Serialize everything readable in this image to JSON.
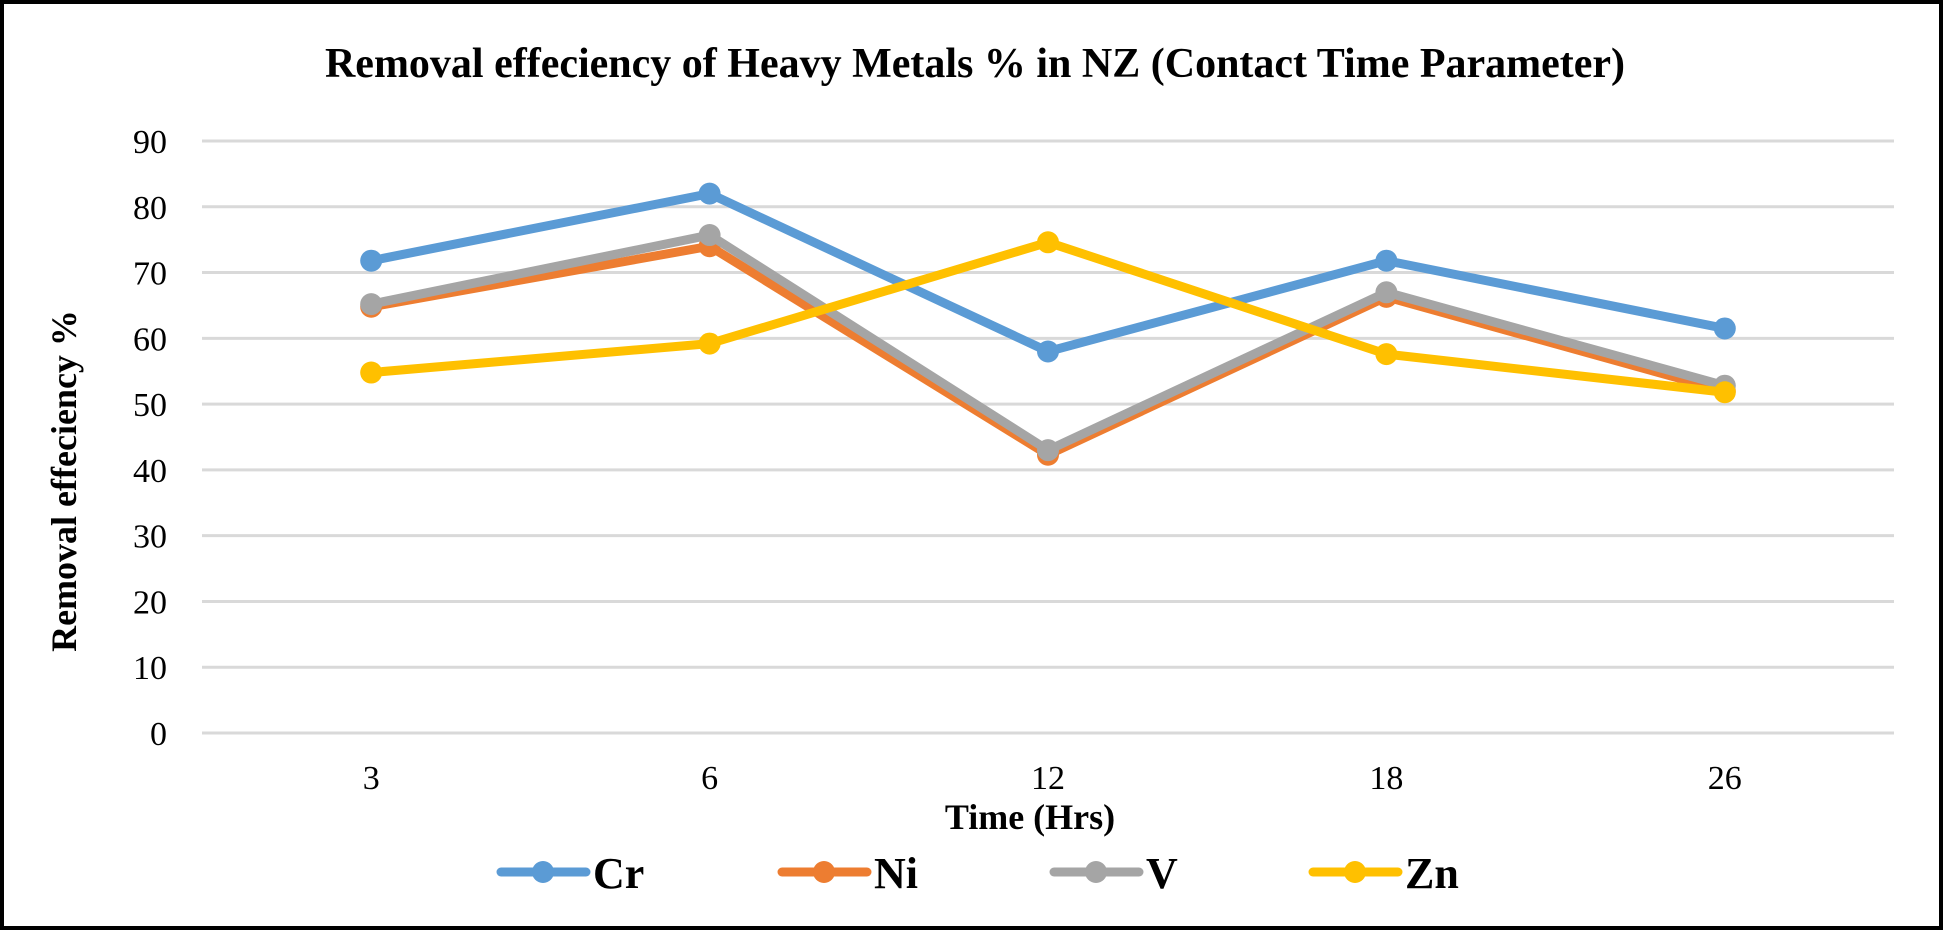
{
  "chart_data": {
    "type": "line",
    "title": "Removal effeciency of Heavy Metals % in NZ (Contact Time Parameter)",
    "xlabel": "Time (Hrs)",
    "ylabel": "Removal effeciency %",
    "categories": [
      "3",
      "6",
      "12",
      "18",
      "26"
    ],
    "ylim": [
      0,
      90
    ],
    "yticks": [
      0,
      10,
      20,
      30,
      40,
      50,
      60,
      70,
      80,
      90
    ],
    "grid": true,
    "legend_position": "bottom",
    "series": [
      {
        "name": "Cr",
        "color": "#5B9BD5",
        "values": [
          71.8,
          82,
          58,
          71.8,
          61.5
        ]
      },
      {
        "name": "Ni",
        "color": "#ED7D31",
        "values": [
          64.8,
          74,
          42.3,
          66.3,
          52
        ]
      },
      {
        "name": "V",
        "color": "#A5A5A5",
        "values": [
          65.2,
          75.7,
          43,
          67,
          52.8
        ]
      },
      {
        "name": "Zn",
        "color": "#FFC000",
        "values": [
          54.8,
          59.2,
          74.6,
          57.6,
          51.8
        ]
      }
    ]
  }
}
